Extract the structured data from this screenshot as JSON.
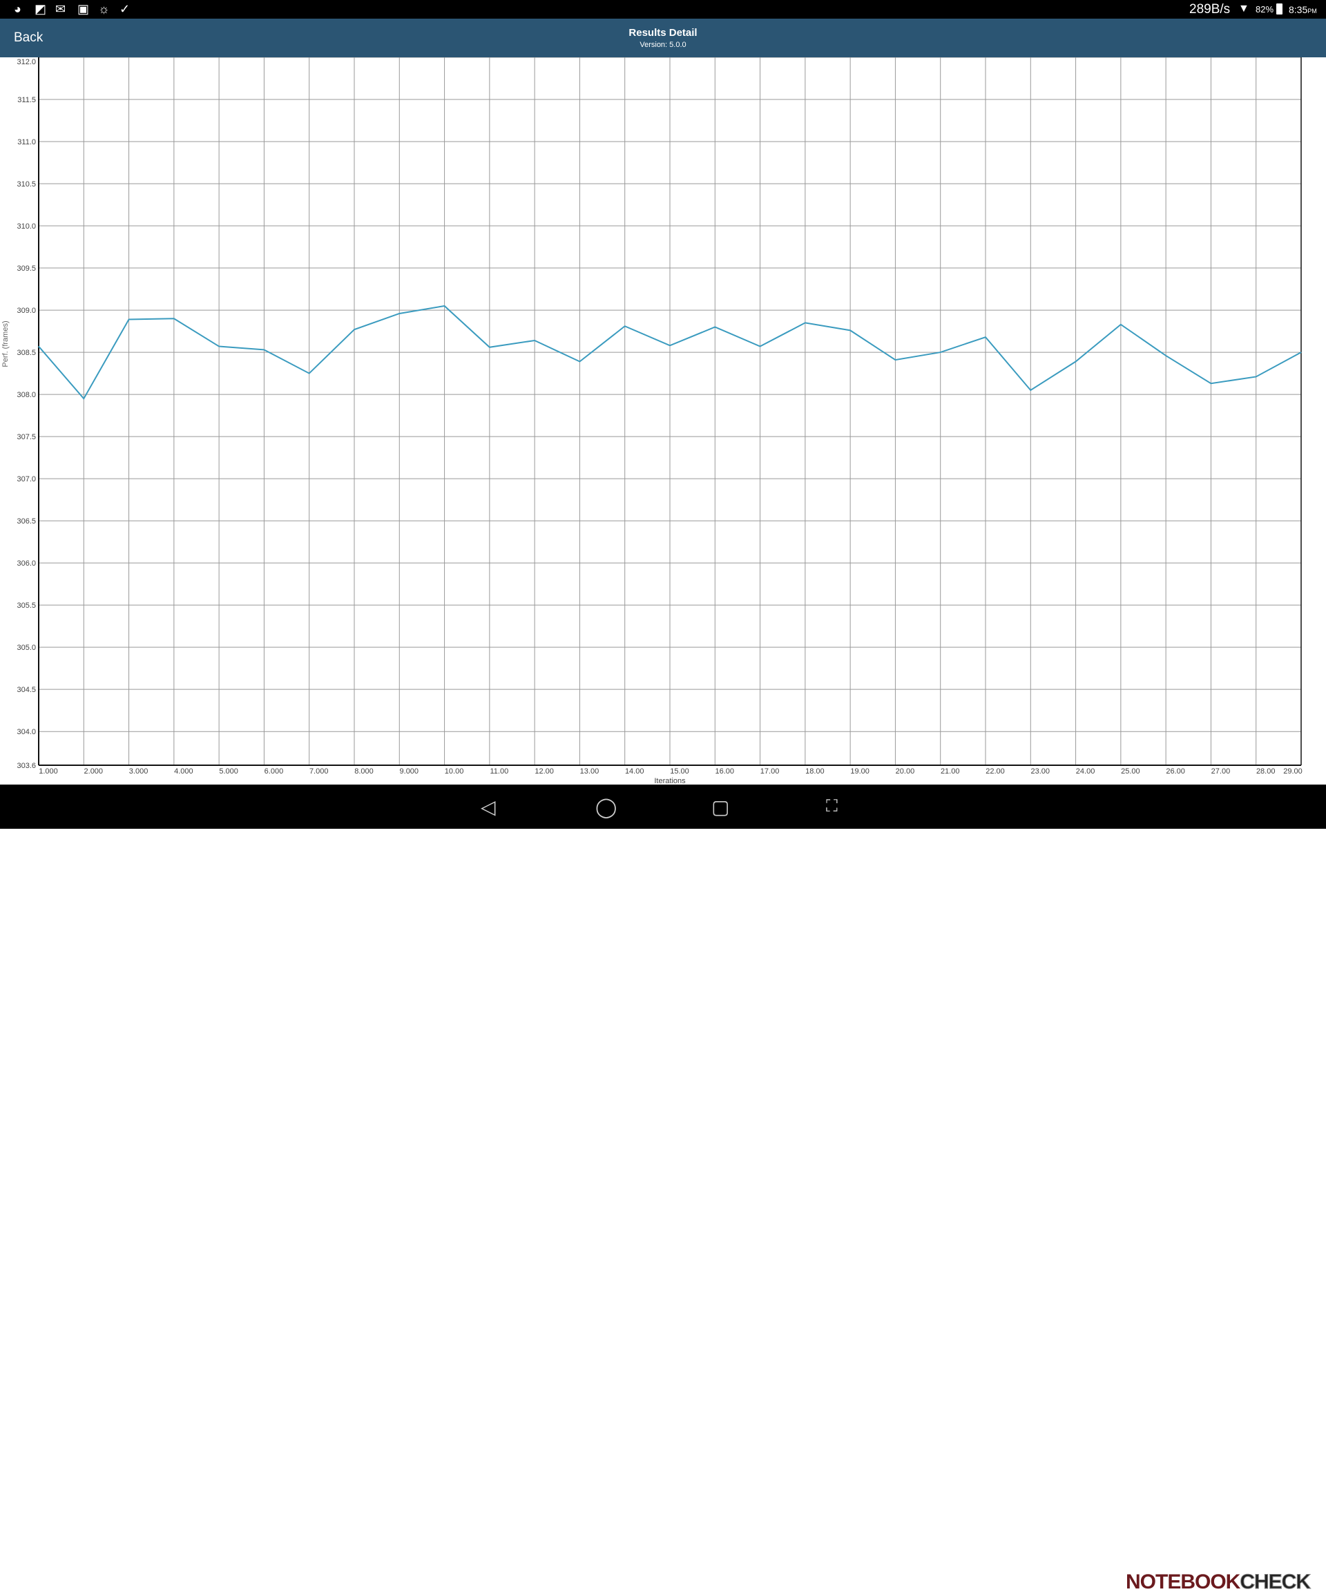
{
  "status_bar": {
    "icons": [
      "globe-icon",
      "notification-icon",
      "gmail-icon",
      "image-icon",
      "settings-sun-icon",
      "check-flag-icon"
    ],
    "network_speed": "289B/s",
    "battery_percent": "82%",
    "time": "8:35",
    "time_suffix": "PM"
  },
  "header": {
    "back_label": "Back",
    "title": "Results Detail",
    "version": "Version: 5.0.0"
  },
  "nav_bar": {
    "icons": [
      "back-triangle-icon",
      "home-circle-icon",
      "recents-square-icon",
      "screenshot-icon"
    ]
  },
  "watermark": {
    "part1": "NOTEBOOK",
    "part2": "CHECK"
  },
  "chart_data": {
    "type": "line",
    "xlabel": "Iterations",
    "ylabel": "Perf. (frames)",
    "xlim": [
      1,
      29
    ],
    "ylim": [
      303.6,
      312.0
    ],
    "grid": true,
    "line_color": "#3a9bbf",
    "x_tick_labels": [
      "1.000",
      "2.000",
      "3.000",
      "4.000",
      "5.000",
      "6.000",
      "7.000",
      "8.000",
      "9.000",
      "10.00",
      "11.00",
      "12.00",
      "13.00",
      "14.00",
      "15.00",
      "16.00",
      "17.00",
      "18.00",
      "19.00",
      "20.00",
      "21.00",
      "22.00",
      "23.00",
      "24.00",
      "25.00",
      "26.00",
      "27.00",
      "28.00",
      "29.00"
    ],
    "y_tick_labels": [
      "303.6",
      "304.0",
      "304.5",
      "305.0",
      "305.5",
      "306.0",
      "306.5",
      "307.0",
      "307.5",
      "308.0",
      "308.5",
      "309.0",
      "309.5",
      "310.0",
      "310.5",
      "311.0",
      "311.5",
      "312.0"
    ],
    "x": [
      1,
      2,
      3,
      4,
      5,
      6,
      7,
      8,
      9,
      10,
      11,
      12,
      13,
      14,
      15,
      16,
      17,
      18,
      19,
      20,
      21,
      22,
      23,
      24,
      25,
      26,
      27,
      28,
      29
    ],
    "y": [
      308.57,
      307.95,
      308.89,
      308.9,
      308.57,
      308.53,
      308.25,
      308.77,
      308.96,
      309.05,
      308.56,
      308.64,
      308.39,
      308.81,
      308.58,
      308.8,
      308.57,
      308.85,
      308.76,
      308.41,
      308.5,
      308.68,
      308.05,
      308.39,
      308.83,
      308.46,
      308.13,
      308.21,
      308.5
    ]
  }
}
